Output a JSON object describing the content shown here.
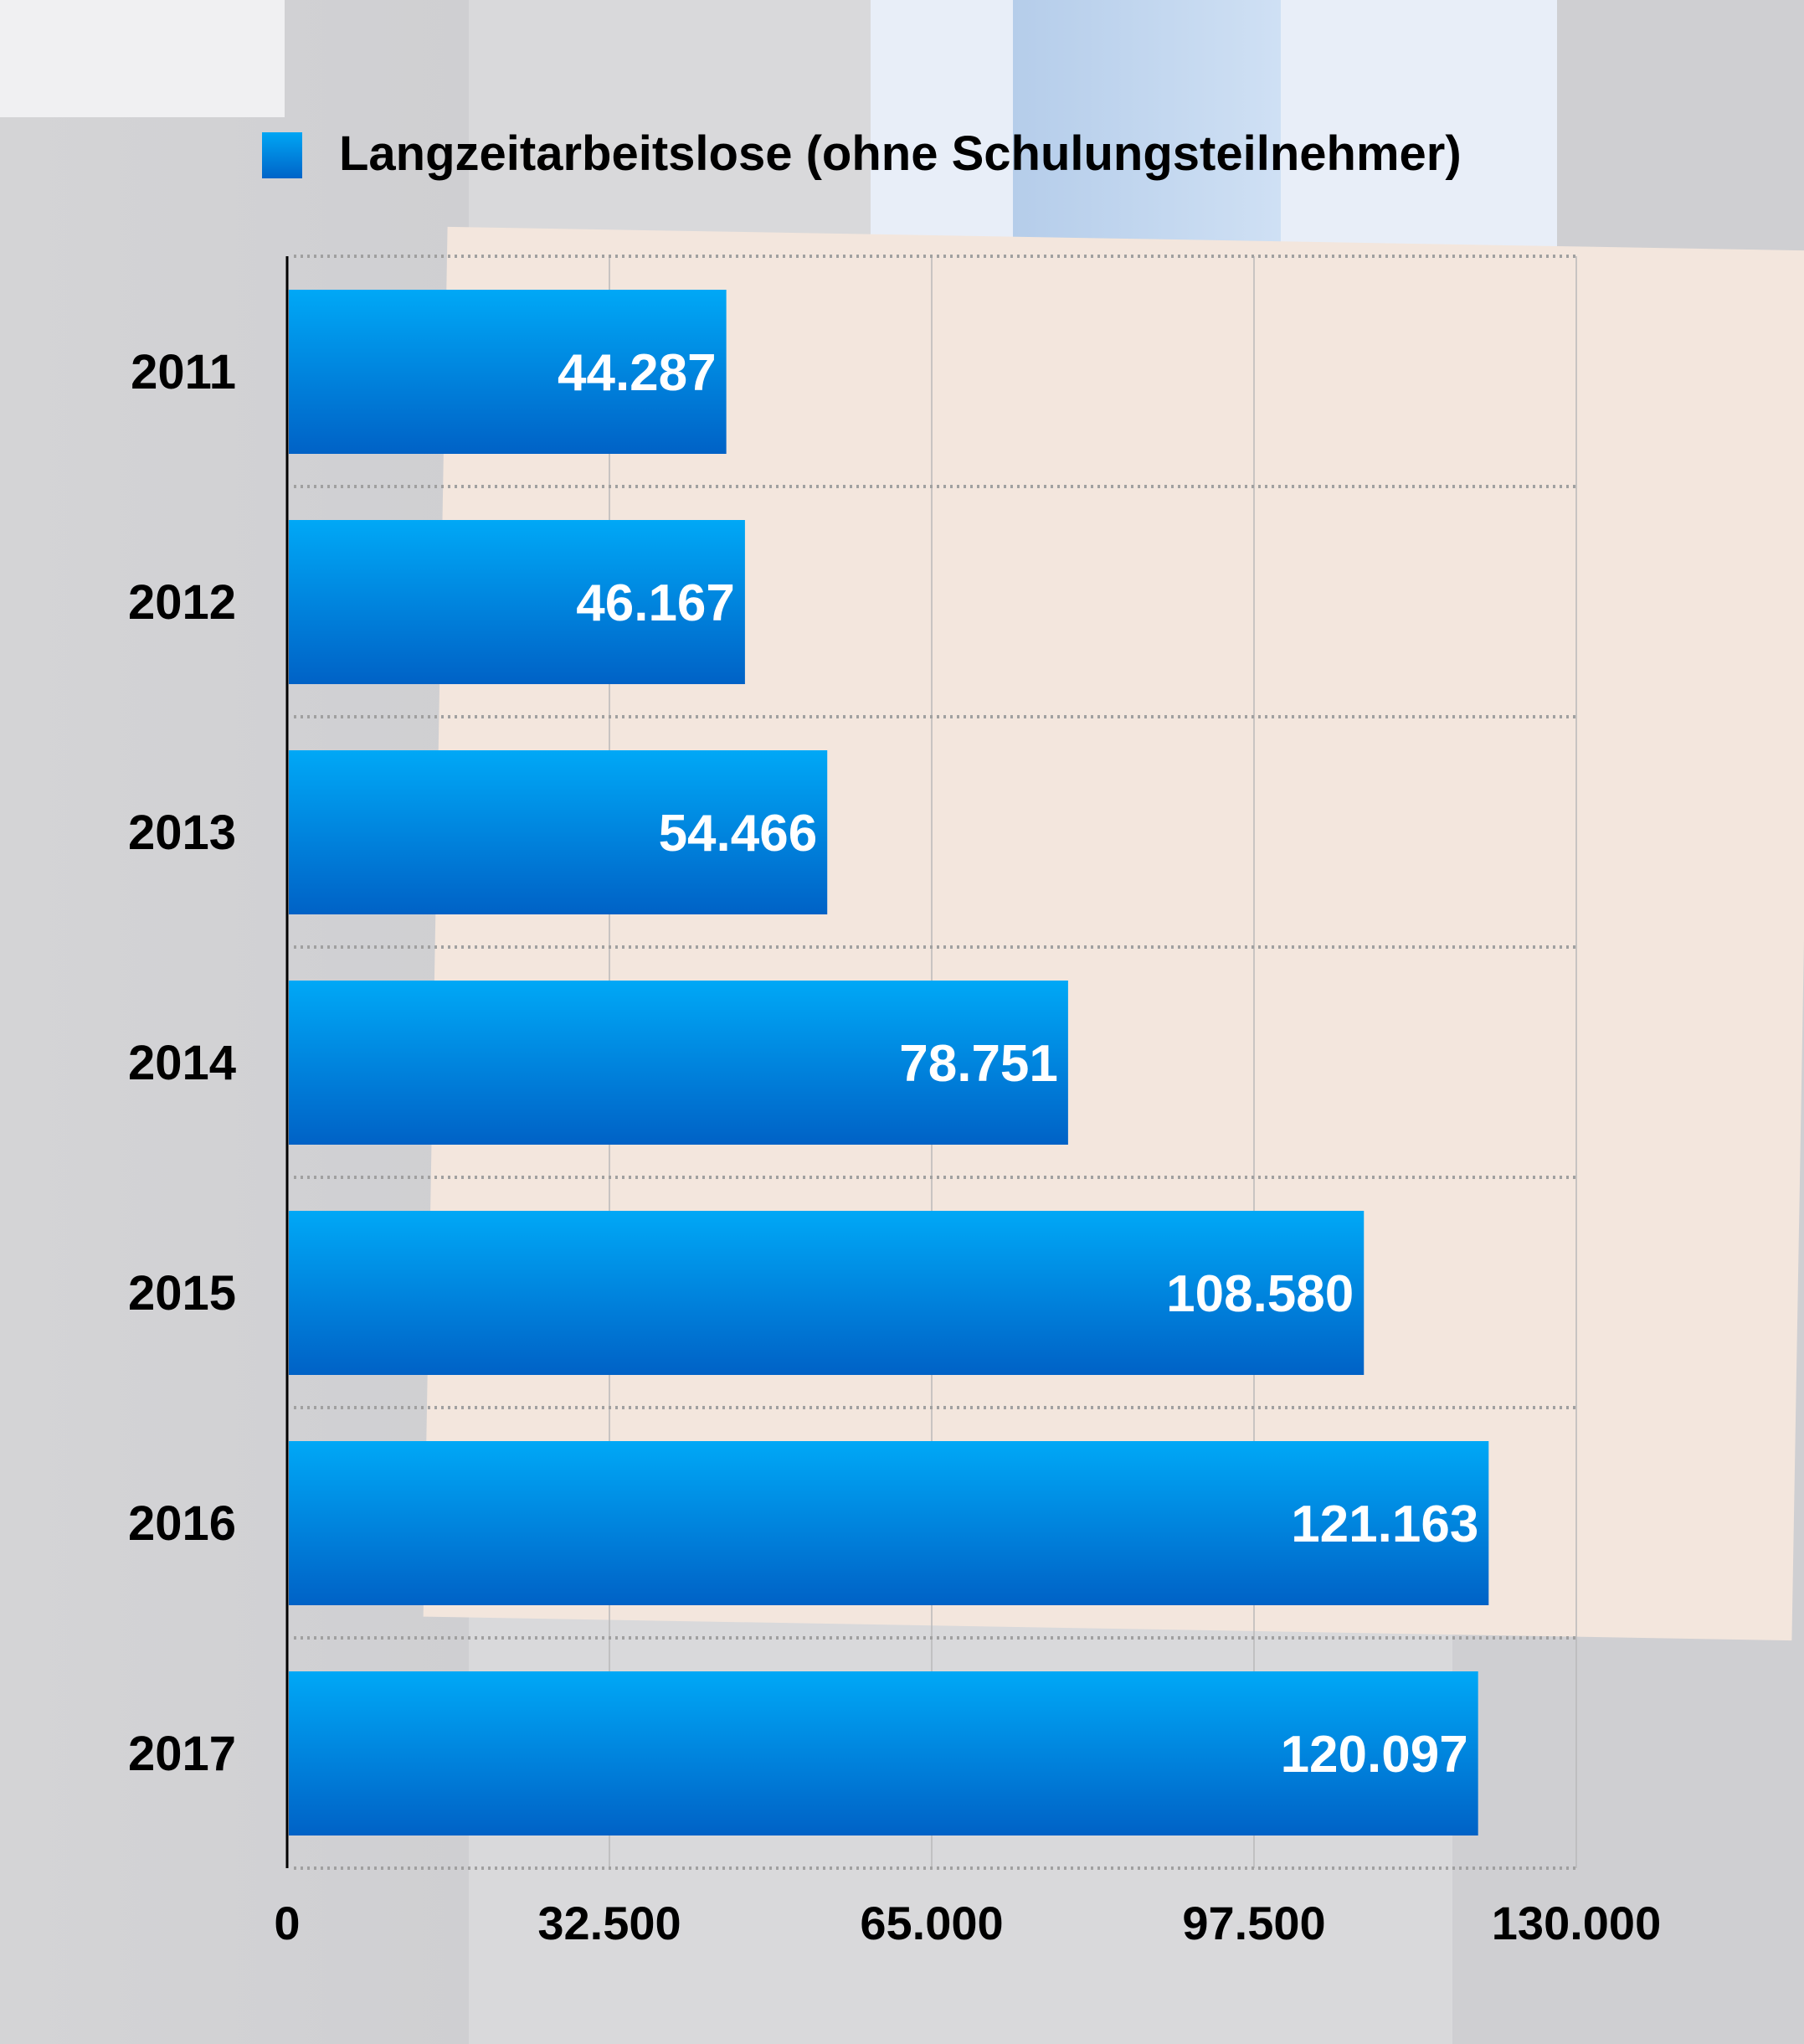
{
  "chart_data": {
    "type": "bar",
    "orientation": "horizontal",
    "title": "",
    "legend": [
      "Langzeitarbeitslose (ohne Schulungsteilnehmer)"
    ],
    "legend_placement": "top",
    "categories": [
      "2011",
      "2012",
      "2013",
      "2014",
      "2015",
      "2016",
      "2017"
    ],
    "values": [
      44287,
      46167,
      54466,
      78751,
      108580,
      121163,
      120097
    ],
    "value_labels": [
      "44.287",
      "46.167",
      "54.466",
      "78.751",
      "108.580",
      "121.163",
      "120.097"
    ],
    "xlim": [
      0,
      130000
    ],
    "xticks": [
      0,
      32500,
      65000,
      97500,
      130000
    ],
    "xtick_labels": [
      "0",
      "32.500",
      "65.000",
      "97.500",
      "130.000"
    ],
    "xlabel": "",
    "ylabel": "",
    "grid": true,
    "bar_color_top": "#00a8f6",
    "bar_color_bottom": "#0062c6"
  }
}
